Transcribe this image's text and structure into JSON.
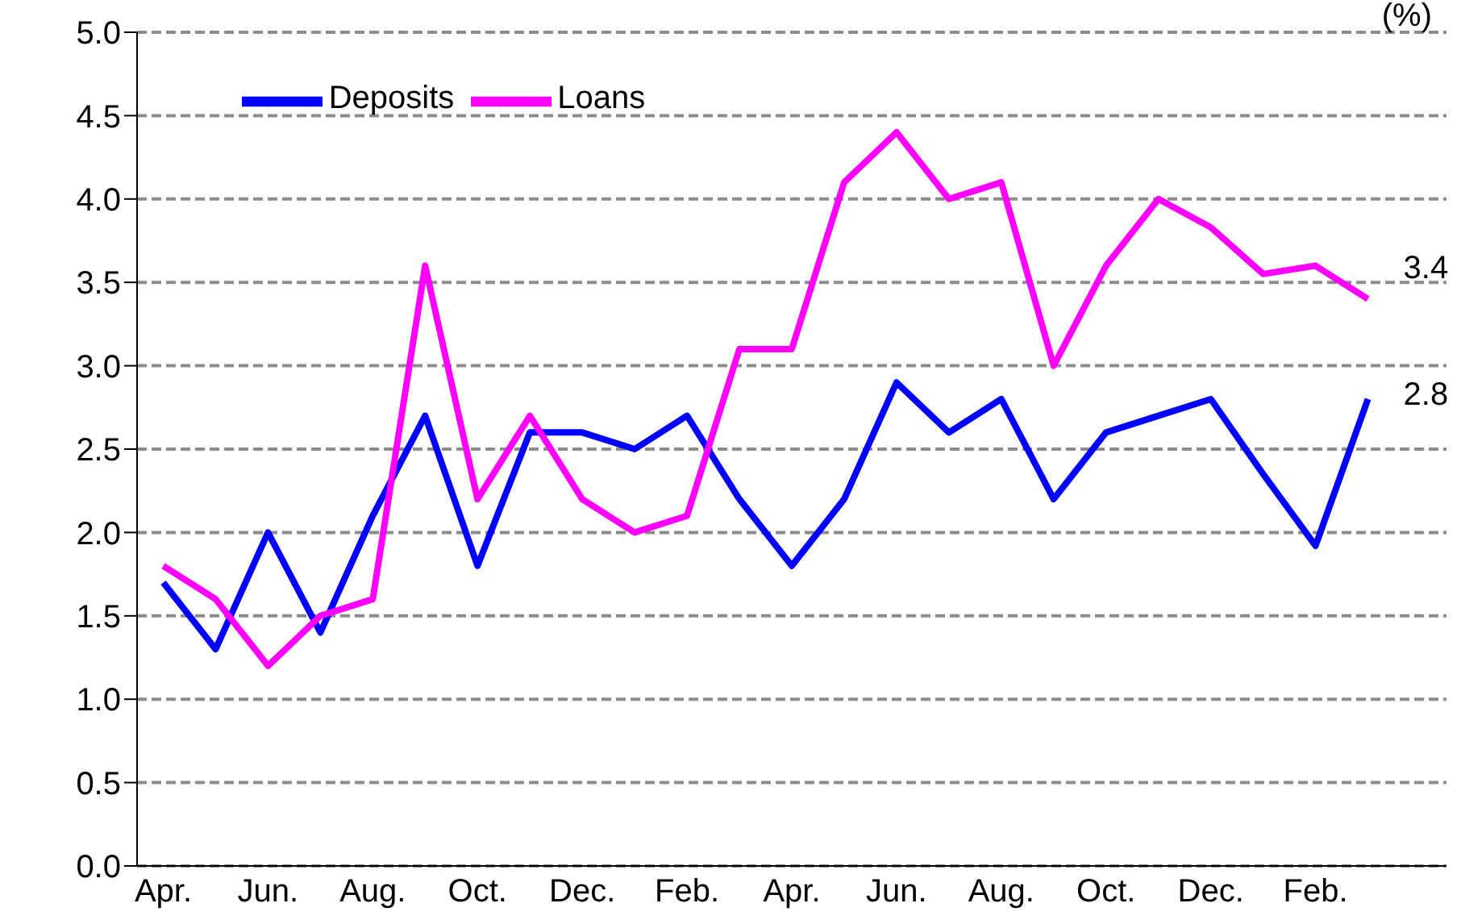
{
  "chart_data": {
    "type": "line",
    "ylabel": "(%)",
    "categories": [
      "Apr.",
      null,
      "Jun.",
      null,
      "Aug.",
      null,
      "Oct.",
      null,
      "Dec.",
      null,
      "Feb.",
      null,
      "Apr.",
      null,
      "Jun.",
      null,
      "Aug.",
      null,
      "Oct.",
      null,
      "Dec.",
      null,
      "Feb.",
      null,
      null
    ],
    "series": [
      {
        "name": "Deposits",
        "color": "#0000ff",
        "values": [
          1.7,
          1.3,
          2.0,
          1.4,
          2.1,
          2.7,
          1.8,
          2.6,
          2.6,
          2.5,
          2.7,
          2.2,
          1.8,
          2.2,
          2.9,
          2.6,
          2.8,
          2.2,
          2.6,
          2.7,
          2.8,
          2.35,
          1.92,
          2.8,
          null
        ],
        "value_labels": [
          null,
          null,
          null,
          null,
          null,
          null,
          null,
          null,
          null,
          null,
          null,
          null,
          null,
          null,
          null,
          null,
          null,
          null,
          null,
          null,
          null,
          null,
          null,
          "2.8",
          null
        ]
      },
      {
        "name": "Loans",
        "color": "#ff00ff",
        "values": [
          1.8,
          1.6,
          1.2,
          1.5,
          1.6,
          3.6,
          2.2,
          2.7,
          2.2,
          2.0,
          2.1,
          3.1,
          3.1,
          4.1,
          4.4,
          4.0,
          4.1,
          3.0,
          3.6,
          4.0,
          3.83,
          3.55,
          3.6,
          3.4,
          null
        ],
        "value_labels": [
          null,
          null,
          null,
          null,
          null,
          null,
          null,
          null,
          null,
          null,
          null,
          null,
          null,
          null,
          null,
          null,
          null,
          null,
          null,
          null,
          null,
          null,
          null,
          "3.4",
          null
        ]
      }
    ],
    "ylim": [
      0,
      5
    ],
    "yticks": [
      {
        "value": 0,
        "label": "0.0"
      },
      0.5,
      {
        "value": 1,
        "label": "1.0"
      },
      1.5,
      {
        "value": 2,
        "label": "2.0"
      },
      2.5,
      {
        "value": 3,
        "label": "3.0"
      },
      3.5,
      {
        "value": 4,
        "label": "4.0"
      },
      4.5,
      {
        "value": 5,
        "label": "5.0"
      }
    ],
    "grid": "y",
    "legend": "top left",
    "marker": "none",
    "line_style": "solid"
  }
}
